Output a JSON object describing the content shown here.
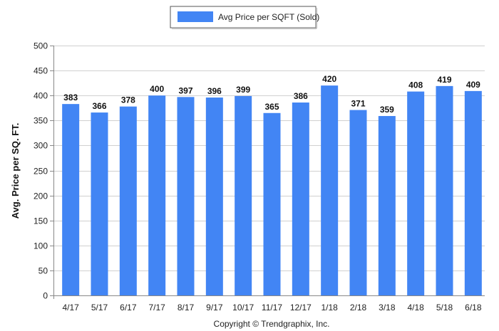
{
  "chart_data": {
    "type": "bar",
    "categories": [
      "4/17",
      "5/17",
      "6/17",
      "7/17",
      "8/17",
      "9/17",
      "10/17",
      "11/17",
      "12/17",
      "1/18",
      "2/18",
      "3/18",
      "4/18",
      "5/18",
      "6/18"
    ],
    "series": [
      {
        "name": "Avg Price per SQFT (Sold)",
        "values": [
          383,
          366,
          378,
          400,
          397,
          396,
          399,
          365,
          386,
          420,
          371,
          359,
          408,
          419,
          409
        ]
      }
    ],
    "title": "",
    "xlabel": "",
    "ylabel": "Avg. Price per SQ. FT.",
    "ylim": [
      0,
      500
    ],
    "yticks": [
      0,
      50,
      100,
      150,
      200,
      250,
      300,
      350,
      400,
      450,
      500
    ],
    "grid": true,
    "legend_position": "top-center",
    "bar_color": "#4285f4",
    "data_labels": true
  },
  "footer": {
    "copyright": "Copyright © Trendgraphix, Inc."
  }
}
